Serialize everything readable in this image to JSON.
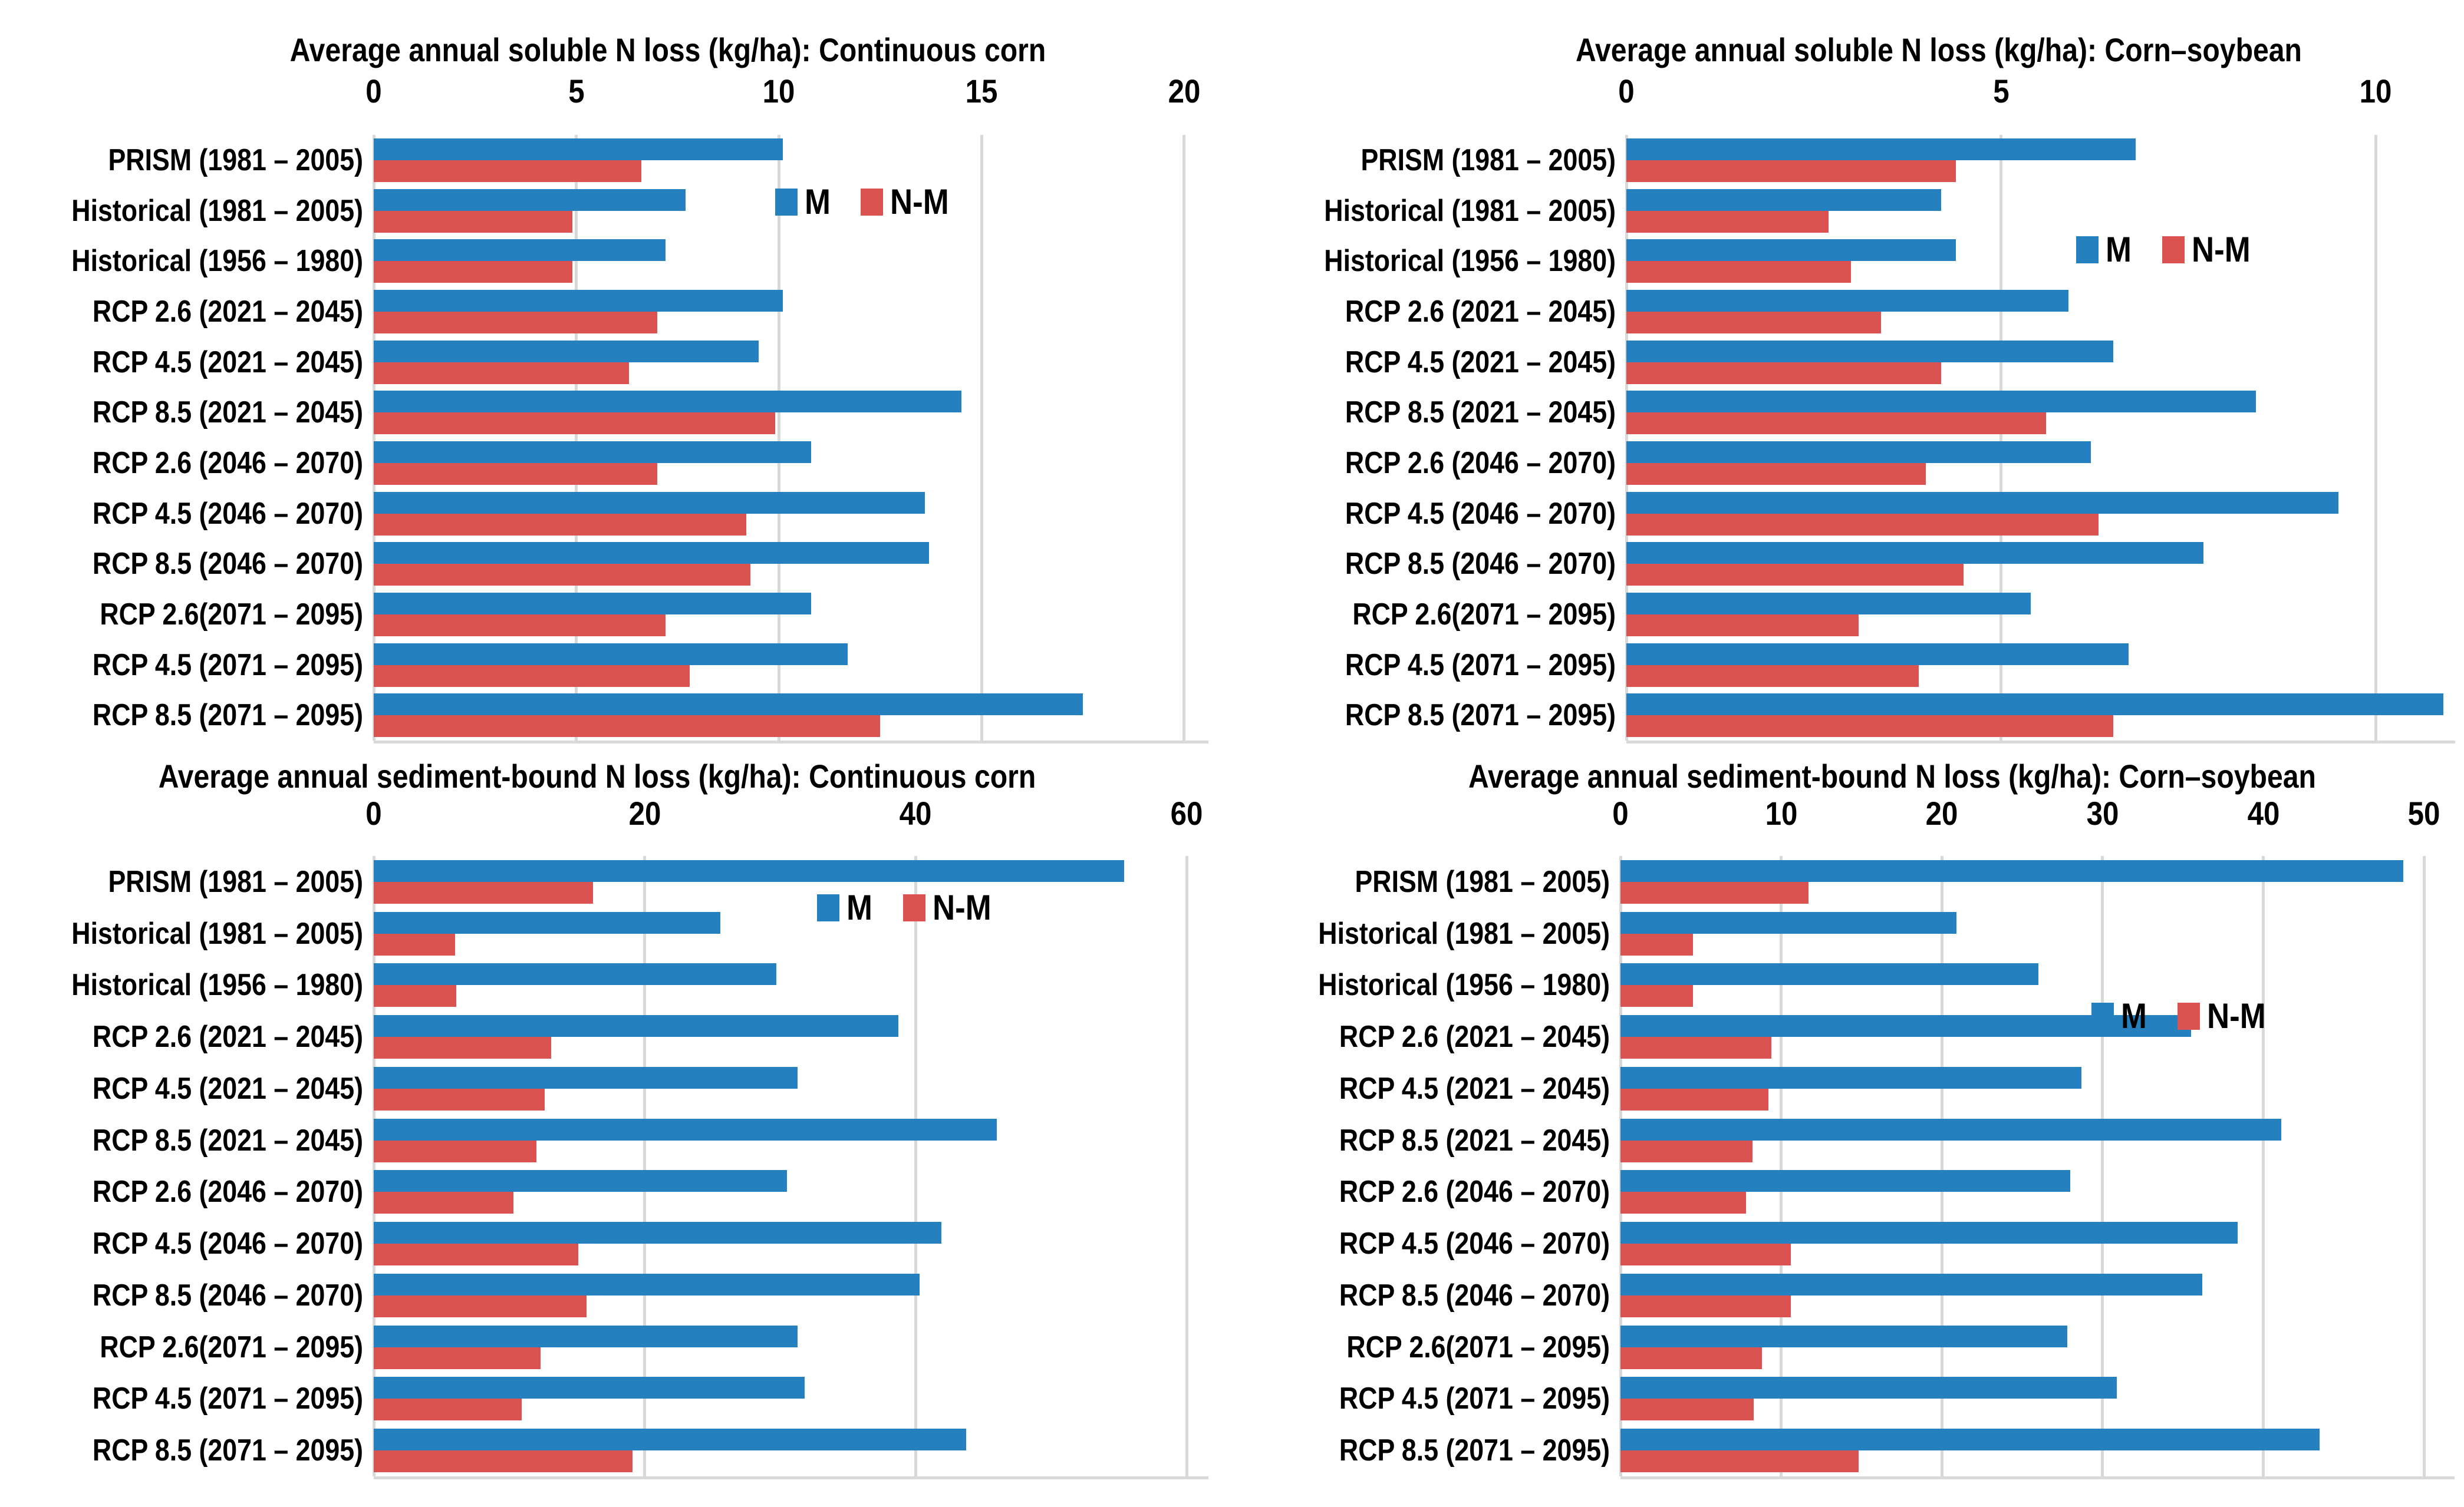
{
  "colors": {
    "m_blue": "#2480BE",
    "nm_red": "#DB5350",
    "gridline": "#D9D9D9",
    "text": "#000000",
    "background": "#FFFFFF"
  },
  "chart_data": [
    {
      "type": "bar",
      "orientation": "horizontal",
      "title": "Average annual soluble N loss (kg/ha): Continuous corn",
      "xlabel": "",
      "ylabel": "",
      "grid": true,
      "xticks": [
        0,
        5,
        10,
        15,
        20
      ],
      "xlim": [
        0,
        20.6
      ],
      "legend_position": {
        "x_units": 9.9,
        "y_rows": 1.33
      },
      "categories": [
        "PRISM (1981 – 2005)",
        "Historical (1981 – 2005)",
        "Historical (1956 – 1980)",
        "RCP 2.6 (2021 – 2045)",
        "RCP 4.5 (2021 – 2045)",
        "RCP 8.5 (2021 – 2045)",
        "RCP 2.6 (2046 – 2070)",
        "RCP 4.5 (2046 – 2070)",
        "RCP 8.5 (2046 – 2070)",
        "RCP 2.6(2071 – 2095)",
        "RCP 4.5 (2071 – 2095)",
        "RCP 8.5 (2071 – 2095)"
      ],
      "series": [
        {
          "name": "M",
          "values": [
            10.1,
            7.7,
            7.2,
            10.1,
            9.5,
            14.5,
            10.8,
            13.6,
            13.7,
            10.8,
            11.7,
            17.5
          ]
        },
        {
          "name": "N-M",
          "values": [
            6.6,
            4.9,
            4.9,
            7.0,
            6.3,
            9.9,
            7.0,
            9.2,
            9.3,
            7.2,
            7.8,
            12.5
          ]
        }
      ]
    },
    {
      "type": "bar",
      "orientation": "horizontal",
      "title": "Average annual soluble N loss (kg/ha): Corn–soybean",
      "xlabel": "",
      "ylabel": "",
      "grid": true,
      "xticks": [
        0,
        5,
        10
      ],
      "xlim": [
        0,
        11.06
      ],
      "legend_position": {
        "x_units": 6.0,
        "y_rows": 2.28
      },
      "categories": [
        "PRISM (1981 – 2005)",
        "Historical (1981 – 2005)",
        "Historical (1956 – 1980)",
        "RCP 2.6 (2021 – 2045)",
        "RCP 4.5 (2021 – 2045)",
        "RCP 8.5 (2021 – 2045)",
        "RCP 2.6 (2046 – 2070)",
        "RCP 4.5 (2046 – 2070)",
        "RCP 8.5 (2046 – 2070)",
        "RCP 2.6(2071 – 2095)",
        "RCP 4.5 (2071 – 2095)",
        "RCP 8.5 (2071 – 2095)"
      ],
      "series": [
        {
          "name": "M",
          "values": [
            6.8,
            4.2,
            4.4,
            5.9,
            6.5,
            8.4,
            6.2,
            9.5,
            7.7,
            5.4,
            6.7,
            10.9
          ]
        },
        {
          "name": "N-M",
          "values": [
            4.4,
            2.7,
            3.0,
            3.4,
            4.2,
            5.6,
            4.0,
            6.3,
            4.5,
            3.1,
            3.9,
            6.5
          ]
        }
      ]
    },
    {
      "type": "bar",
      "orientation": "horizontal",
      "title": "Average annual sediment-bound N loss (kg/ha): Continuous corn",
      "xlabel": "",
      "ylabel": "",
      "grid": true,
      "xticks": [
        0,
        20,
        40,
        60
      ],
      "xlim": [
        0,
        61.6
      ],
      "legend_position": {
        "x_units": 32.7,
        "y_rows": 1.0
      },
      "categories": [
        "PRISM (1981 – 2005)",
        "Historical (1981 – 2005)",
        "Historical (1956 – 1980)",
        "RCP 2.6 (2021 – 2045)",
        "RCP 4.5 (2021 – 2045)",
        "RCP 8.5 (2021 – 2045)",
        "RCP 2.6 (2046 – 2070)",
        "RCP 4.5 (2046 – 2070)",
        "RCP 8.5 (2046 – 2070)",
        "RCP 2.6(2071 – 2095)",
        "RCP 4.5 (2071 – 2095)",
        "RCP 8.5 (2071 – 2095)"
      ],
      "series": [
        {
          "name": "M",
          "values": [
            55.4,
            25.6,
            29.7,
            38.7,
            31.3,
            46.0,
            30.5,
            41.9,
            40.3,
            31.3,
            31.8,
            43.7
          ]
        },
        {
          "name": "N-M",
          "values": [
            16.2,
            6.0,
            6.1,
            13.1,
            12.6,
            12.0,
            10.3,
            15.1,
            15.7,
            12.3,
            10.9,
            19.1
          ]
        }
      ]
    },
    {
      "type": "bar",
      "orientation": "horizontal",
      "title": "Average annual sediment-bound N loss (kg/ha): Corn–soybean",
      "xlabel": "",
      "ylabel": "",
      "grid": true,
      "xticks": [
        0,
        10,
        20,
        30,
        40,
        50
      ],
      "xlim": [
        0,
        51.9
      ],
      "legend_position": {
        "x_units": 29.3,
        "y_rows": 3.1
      },
      "categories": [
        "PRISM (1981 – 2005)",
        "Historical (1981 – 2005)",
        "Historical (1956 – 1980)",
        "RCP 2.6 (2021 – 2045)",
        "RCP 4.5 (2021 – 2045)",
        "RCP 8.5 (2021 – 2045)",
        "RCP 2.6 (2046 – 2070)",
        "RCP 4.5 (2046 – 2070)",
        "RCP 8.5 (2046 – 2070)",
        "RCP 2.6(2071 – 2095)",
        "RCP 4.5 (2071 – 2095)",
        "RCP 8.5 (2071 – 2095)"
      ],
      "series": [
        {
          "name": "M",
          "values": [
            48.7,
            20.9,
            26.0,
            35.5,
            28.7,
            41.1,
            28.0,
            38.4,
            36.2,
            27.8,
            30.9,
            43.5
          ]
        },
        {
          "name": "N-M",
          "values": [
            11.7,
            4.5,
            4.5,
            9.4,
            9.2,
            8.2,
            7.8,
            10.6,
            10.6,
            8.8,
            8.3,
            14.8
          ]
        }
      ]
    }
  ]
}
